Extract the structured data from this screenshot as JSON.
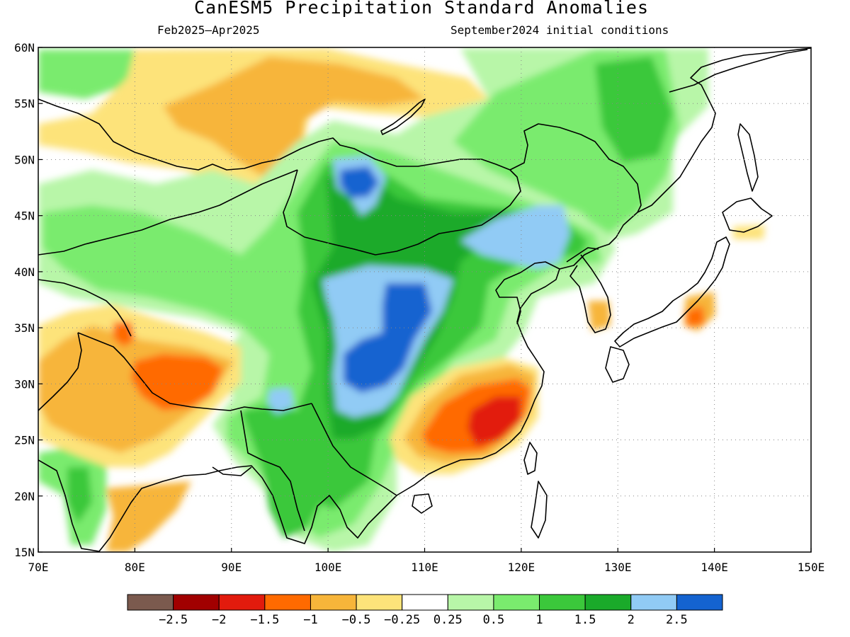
{
  "title": "CanESM5 Precipitation Standard Anomalies",
  "period": "Feb2025–Apr2025",
  "initial_conditions": "September2024 initial conditions",
  "map": {
    "lon_range": [
      70,
      150
    ],
    "lat_range": [
      15,
      60
    ],
    "lon_ticks": [
      "70E",
      "80E",
      "90E",
      "100E",
      "110E",
      "120E",
      "130E",
      "140E",
      "150E"
    ],
    "lat_ticks": [
      "15N",
      "20N",
      "25N",
      "30N",
      "35N",
      "40N",
      "45N",
      "50N",
      "55N",
      "60N"
    ],
    "grid": "dotted"
  },
  "colorbar": {
    "colors": [
      "#7b5a4e",
      "#a10000",
      "#e21b0d",
      "#ff6a00",
      "#f7b53a",
      "#fde37a",
      "#ffffff",
      "#b8f6a8",
      "#7aeb6e",
      "#3bc83b",
      "#1aaa2a",
      "#91cbf5",
      "#1463d0"
    ],
    "labels": [
      "−2.5",
      "−2",
      "−1.5",
      "−1",
      "−0.5",
      "−0.25",
      "0.25",
      "0.5",
      "1",
      "1.5",
      "2",
      "2.5"
    ]
  },
  "features": [
    {
      "name": "dry-northern-india",
      "class": "-1",
      "lon": 85,
      "lat": 31
    },
    {
      "name": "dry-southeast-china",
      "class": "-2",
      "lon": 117,
      "lat": 27
    },
    {
      "name": "wet-central-china",
      "class": "2.5",
      "lon": 106,
      "lat": 34
    },
    {
      "name": "wet-mongolia",
      "class": "2.5",
      "lon": 103,
      "lat": 48
    },
    {
      "name": "wet-inner-mongolia",
      "class": "2",
      "lon": 124,
      "lat": 43
    },
    {
      "name": "dry-western-siberia",
      "class": "-0.5",
      "lon": 95,
      "lat": 54
    }
  ]
}
